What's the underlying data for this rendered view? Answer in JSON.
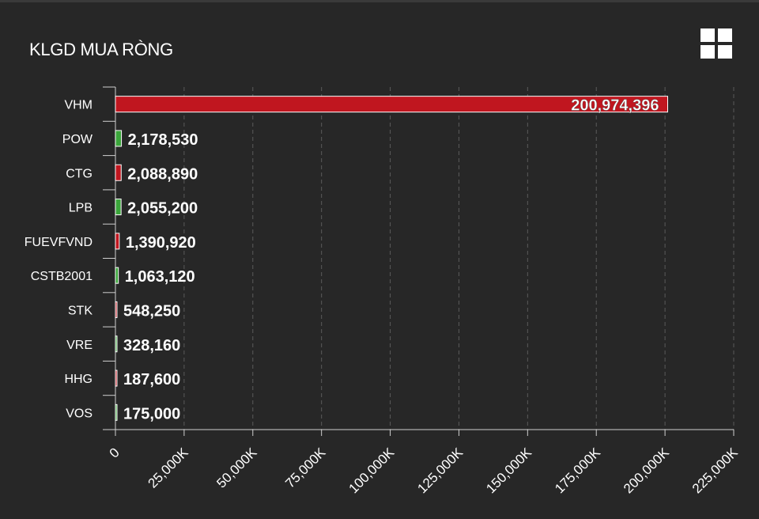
{
  "title": "KLGD MUA RÒNG",
  "menu_icon": "grid-menu-icon",
  "colors": {
    "positive": "#3aa53a",
    "negative": "#c0161f",
    "background": "#272727",
    "grid": "#555555"
  },
  "chart_data": {
    "type": "bar",
    "orientation": "horizontal",
    "title": "KLGD MUA RÒNG",
    "categories": [
      "VHM",
      "POW",
      "CTG",
      "LPB",
      "FUEVFVND",
      "CSTB2001",
      "STK",
      "VRE",
      "HHG",
      "VOS"
    ],
    "values": [
      200974396,
      2178530,
      2088890,
      2055200,
      1390920,
      1063120,
      548250,
      328160,
      187600,
      175000
    ],
    "value_labels": [
      "200,974,396",
      "2,178,530",
      "2,088,890",
      "2,055,200",
      "1,390,920",
      "1,063,120",
      "548,250",
      "328,160",
      "187,600",
      "175,000"
    ],
    "bar_colors": [
      "#c0161f",
      "#3aa53a",
      "#c0161f",
      "#3aa53a",
      "#c0161f",
      "#3aa53a",
      "#c0161f",
      "#3aa53a",
      "#c0161f",
      "#3aa53a"
    ],
    "xlim": [
      0,
      225000000
    ],
    "x_ticks": [
      0,
      25000000,
      50000000,
      75000000,
      100000000,
      125000000,
      150000000,
      175000000,
      200000000,
      225000000
    ],
    "x_tick_labels": [
      "0",
      "25,000K",
      "50,000K",
      "75,000K",
      "100,000K",
      "125,000K",
      "150,000K",
      "175,000K",
      "200,000K",
      "225,000K"
    ],
    "grid": true
  }
}
